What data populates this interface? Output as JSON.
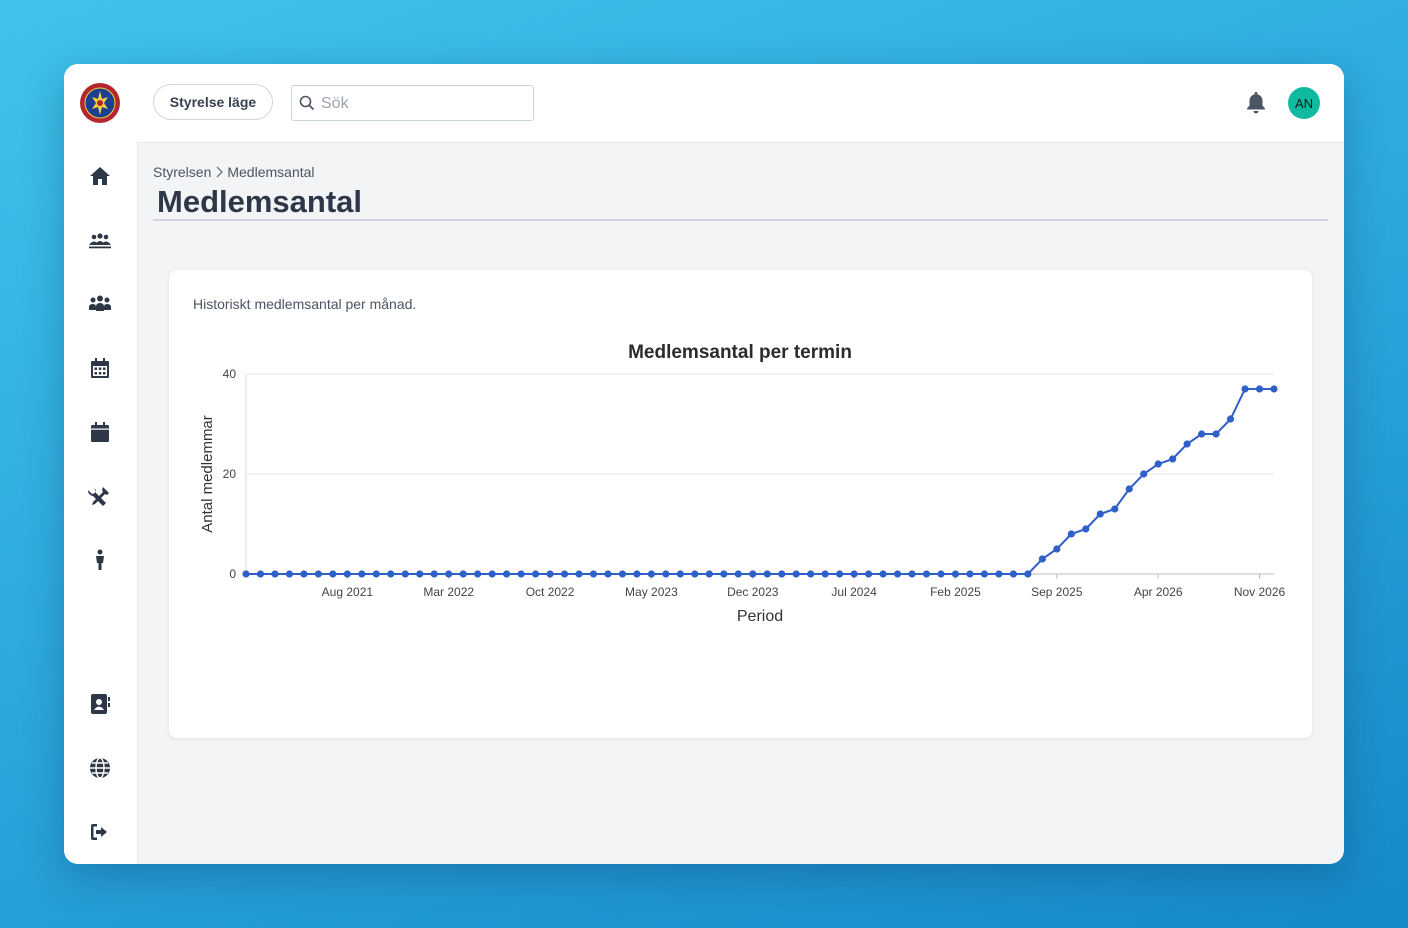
{
  "app": {
    "logo_name": "scout-emblem"
  },
  "sidebar": {
    "top_items": [
      {
        "icon": "home-icon",
        "label": "home"
      },
      {
        "icon": "group-icon",
        "label": "groups"
      },
      {
        "icon": "people-icon",
        "label": "members"
      },
      {
        "icon": "calendar-grid-icon",
        "label": "calendar"
      },
      {
        "icon": "calendar-icon",
        "label": "events"
      },
      {
        "icon": "tools-icon",
        "label": "tools"
      },
      {
        "icon": "person-icon",
        "label": "person"
      }
    ],
    "bottom_items": [
      {
        "icon": "contact-book-icon",
        "label": "contacts"
      },
      {
        "icon": "globe-icon",
        "label": "web"
      },
      {
        "icon": "logout-icon",
        "label": "logout"
      }
    ]
  },
  "topbar": {
    "mode_button": "Styrelse läge",
    "search_placeholder": "Sök",
    "search_value": "",
    "avatar_initials": "AN"
  },
  "breadcrumb": {
    "parent": "Styrelsen",
    "current": "Medlemsantal"
  },
  "page": {
    "title": "Medlemsantal",
    "description": "Historiskt medlemsantal per månad."
  },
  "colors": {
    "line": "#2f5fc8",
    "accent_avatar": "#10b9a0",
    "text_dark": "#2d3748"
  },
  "chart_data": {
    "type": "line",
    "title": "Medlemsantal per termin",
    "xlabel": "Period",
    "ylabel": "Antal medlemmar",
    "ylim": [
      0,
      40
    ],
    "yticks": [
      0,
      20,
      40
    ],
    "grid": true,
    "xtick_labels": [
      "Aug 2021",
      "Mar 2022",
      "Oct 2022",
      "May 2023",
      "Dec 2023",
      "Jul 2024",
      "Feb 2025",
      "Sep 2025",
      "Apr 2026",
      "Nov 2026"
    ],
    "x_start": "Jan 2021",
    "x_end": "Dec 2026",
    "series": [
      {
        "values": [
          0,
          0,
          0,
          0,
          0,
          0,
          0,
          0,
          0,
          0,
          0,
          0,
          0,
          0,
          0,
          0,
          0,
          0,
          0,
          0,
          0,
          0,
          0,
          0,
          0,
          0,
          0,
          0,
          0,
          0,
          0,
          0,
          0,
          0,
          0,
          0,
          0,
          0,
          0,
          0,
          0,
          0,
          0,
          0,
          0,
          0,
          0,
          0,
          0,
          0,
          0,
          0,
          0,
          0,
          0,
          3,
          5,
          8,
          9,
          12,
          13,
          17,
          20,
          22,
          23,
          26,
          28,
          28,
          31,
          37,
          37,
          37
        ]
      }
    ]
  }
}
